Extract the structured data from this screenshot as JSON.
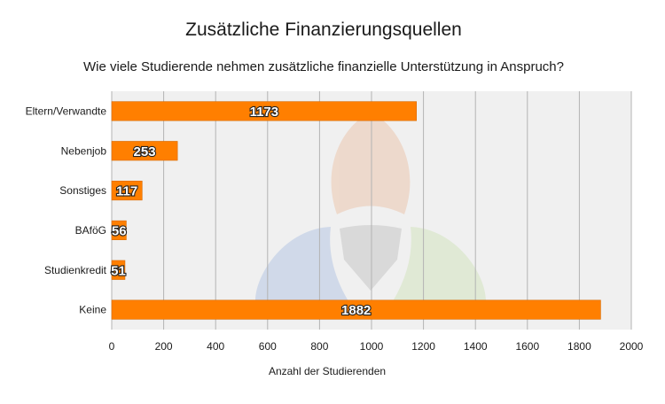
{
  "chart_data": {
    "type": "bar",
    "orientation": "horizontal",
    "title": "Zusätzliche Finanzierungsquellen",
    "subtitle": "Wie viele Studierende nehmen zusätzliche finanzielle Unterstützung in Anspruch?",
    "categories": [
      "Eltern/Verwandte",
      "Nebenjob",
      "Sonstiges",
      "BAföG",
      "Studienkredit",
      "Keine"
    ],
    "values": [
      1173,
      253,
      117,
      56,
      51,
      1882
    ],
    "data_labels": [
      "1173",
      "253",
      "117",
      "56",
      "51",
      "1882"
    ],
    "xlabel": "Anzahl der Studierenden",
    "ylabel": "",
    "xlim": [
      0,
      2000
    ],
    "x_ticks": [
      0,
      200,
      400,
      600,
      800,
      1000,
      1200,
      1400,
      1600,
      1800,
      2000
    ],
    "x_tick_labels": [
      "0",
      "200",
      "400",
      "600",
      "800",
      "1000",
      "1200",
      "1400",
      "1600",
      "1800",
      "2000"
    ],
    "grid": true,
    "legend": "none",
    "colors": {
      "bar": "#ff7f00",
      "plot_background": "#f0f0f0",
      "gridline": "#b3b3b3",
      "watermark_top": "#e8a070",
      "watermark_left": "#7f9fd8",
      "watermark_right": "#b8d890",
      "watermark_center": "#a0a0a0"
    }
  }
}
